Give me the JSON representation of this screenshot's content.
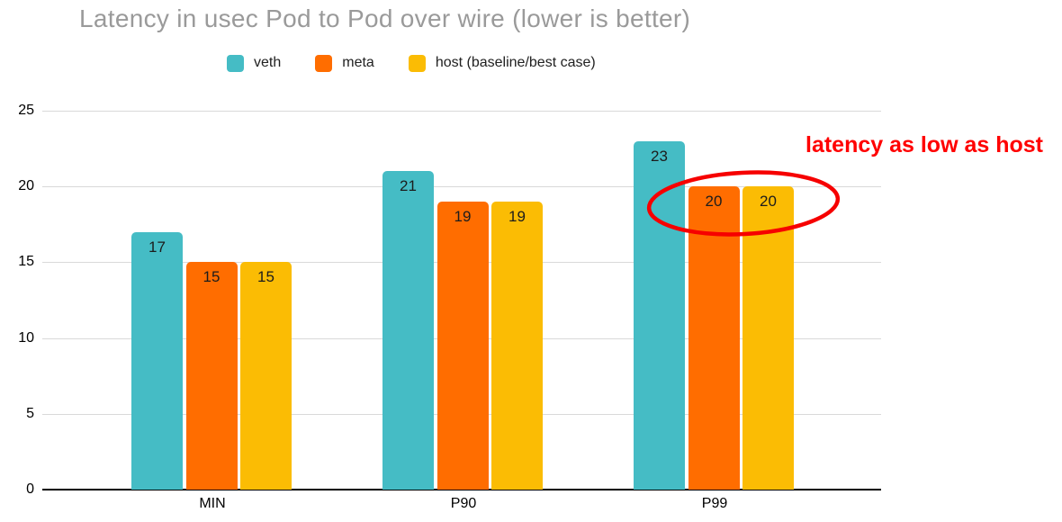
{
  "chart_data": {
    "type": "bar",
    "title": "Latency in usec Pod to Pod over wire (lower is better)",
    "categories": [
      "MIN",
      "P90",
      "P99"
    ],
    "series": [
      {
        "name": "veth",
        "color": "#45BCC5",
        "values": [
          17,
          21,
          23
        ]
      },
      {
        "name": "meta",
        "color": "#FF6D00",
        "values": [
          15,
          19,
          20
        ]
      },
      {
        "name": "host (baseline/best case)",
        "color": "#FBBC04",
        "values": [
          15,
          19,
          20
        ]
      }
    ],
    "xlabel": "",
    "ylabel": "",
    "ylim": [
      0,
      25
    ],
    "yticks": [
      0,
      5,
      10,
      15,
      20,
      25
    ],
    "grid": true,
    "legend_position": "top",
    "value_labels": true,
    "colors": {
      "title": "#9A9A9A",
      "axis_text": "#000000",
      "gridline": "#D9D9D9",
      "baseline": "#000000",
      "annotation": "#FF0000"
    },
    "annotation": {
      "text": "latency as low as host",
      "color": "#FF0000",
      "shape": "hand-drawn red ellipse circling the meta and host bars of the P99 group"
    }
  }
}
